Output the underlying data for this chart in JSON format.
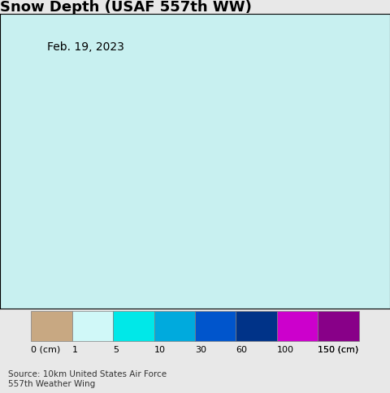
{
  "title": "Snow Depth (USAF 557th WW)",
  "subtitle": "Feb. 19, 2023",
  "source_text": "Source: 10km United States Air Force\n557th Weather Wing",
  "ocean_color": "#c8f0f0",
  "land_bg_color": "#f0e8d8",
  "border_color": "#000000",
  "admin_border_color": "#808080",
  "legend_labels": [
    "0 (cm)",
    "1",
    "5",
    "10",
    "30",
    "60",
    "100",
    "150 (cm)"
  ],
  "legend_colors": [
    "#c8a882",
    "#d0f8f8",
    "#00e8e8",
    "#00aadd",
    "#0055cc",
    "#003388",
    "#cc00cc",
    "#880088"
  ],
  "map_extent": [
    123.5,
    132.5,
    33.0,
    43.5
  ],
  "figsize": [
    4.8,
    4.85
  ],
  "dpi": 100,
  "title_fontsize": 13,
  "subtitle_fontsize": 10,
  "legend_fontsize": 8,
  "source_fontsize": 7.5,
  "background_color": "#e8f8f8",
  "legend_bg_color": "#ffffff",
  "bottom_panel_color": "#e8e8e8"
}
